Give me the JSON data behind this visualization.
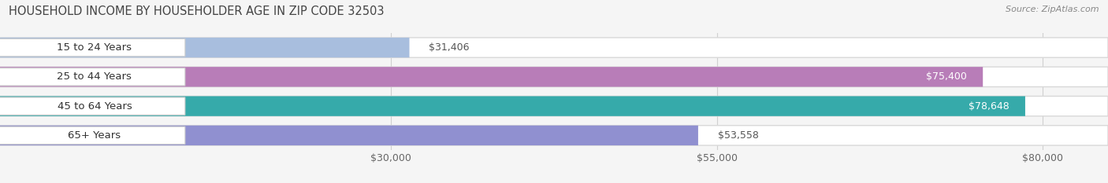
{
  "title": "HOUSEHOLD INCOME BY HOUSEHOLDER AGE IN ZIP CODE 32503",
  "source_text": "Source: ZipAtlas.com",
  "categories": [
    "15 to 24 Years",
    "25 to 44 Years",
    "45 to 64 Years",
    "65+ Years"
  ],
  "values": [
    31406,
    75400,
    78648,
    53558
  ],
  "bar_colors": [
    "#a8bede",
    "#b87db8",
    "#36aaaa",
    "#9090d0"
  ],
  "label_values": [
    "$31,406",
    "$75,400",
    "$78,648",
    "$53,558"
  ],
  "label_inside": [
    false,
    true,
    true,
    false
  ],
  "x_ticks": [
    30000,
    55000,
    80000
  ],
  "x_tick_labels": [
    "$30,000",
    "$55,000",
    "$80,000"
  ],
  "xlim_min": 0,
  "xlim_max": 85000,
  "background_color": "#f5f5f5",
  "bar_bg_color": "#e8e8e8",
  "bar_bg_outline": "#d8d8d8",
  "white_pill_color": "#ffffff",
  "title_fontsize": 10.5,
  "source_fontsize": 8,
  "label_fontsize": 9,
  "tick_fontsize": 9,
  "category_fontsize": 9.5,
  "grid_color": "#d0d0d0"
}
